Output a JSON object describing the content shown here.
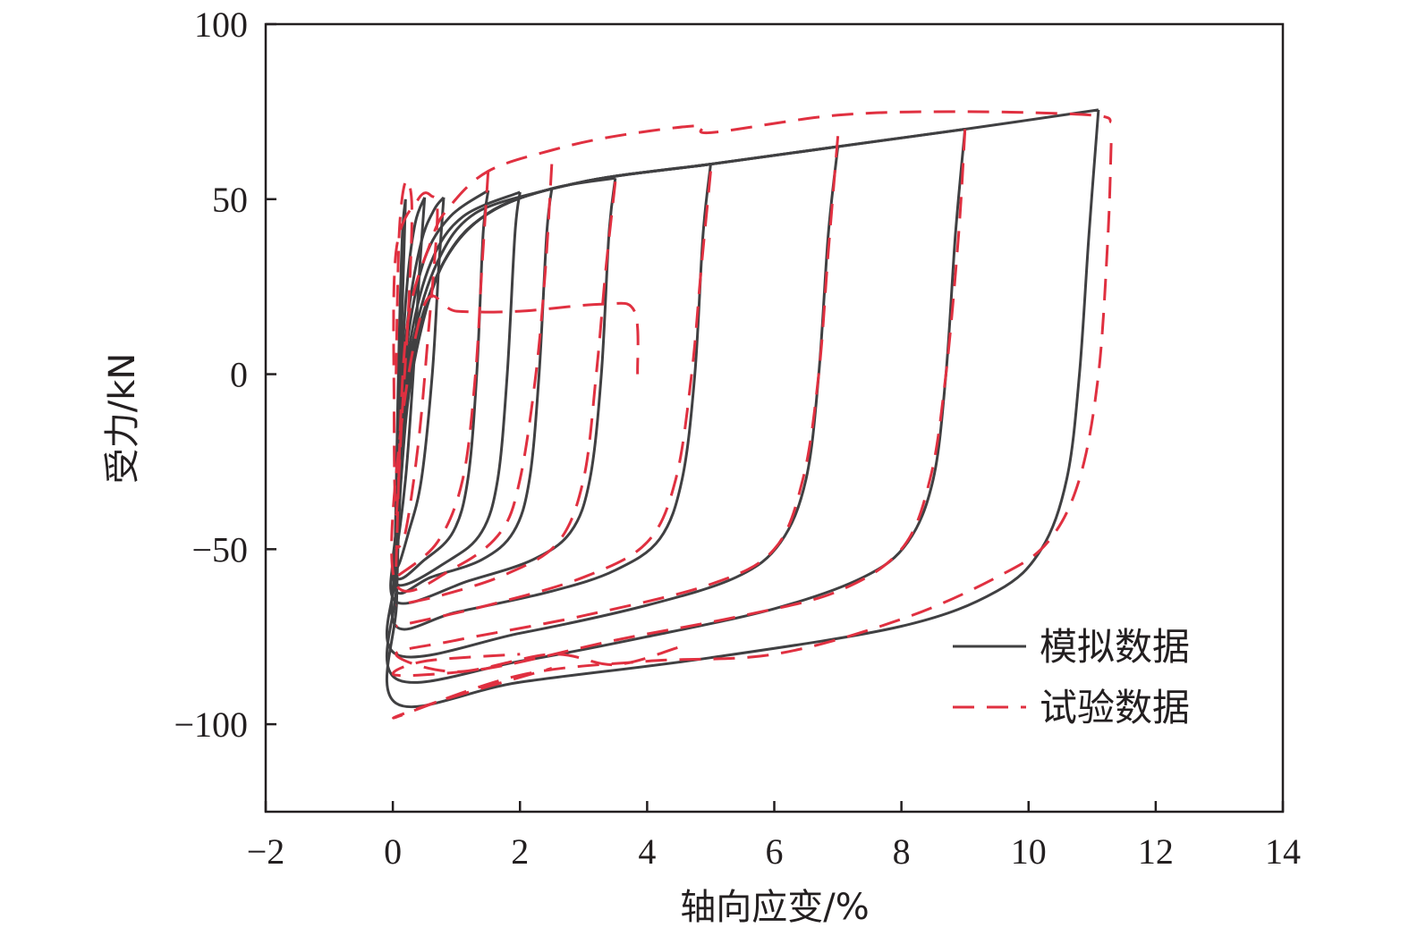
{
  "chart_data": {
    "type": "line",
    "title": "",
    "xlabel": "轴向应变/%",
    "ylabel": "受力/kN",
    "xlim": [
      -2,
      14
    ],
    "ylim": [
      -125,
      100
    ],
    "xticks": [
      -2,
      0,
      2,
      4,
      6,
      8,
      10,
      12,
      14
    ],
    "xtick_labels": [
      "−2",
      "0",
      "2",
      "4",
      "6",
      "8",
      "10",
      "12",
      "14"
    ],
    "yticks": [
      -100,
      -50,
      0,
      50,
      100
    ],
    "ytick_labels": [
      "−100",
      "−50",
      "0",
      "50",
      "100"
    ],
    "grid": false,
    "legend_position": "bottom-right",
    "colors": {
      "simulated": "#404042",
      "experimental": "#e03040"
    },
    "series": [
      {
        "name": "模拟数据",
        "style": "solid",
        "loops": [
          [
            [
              0.2,
              50
            ],
            [
              0.15,
              20
            ],
            [
              0.1,
              -10
            ],
            [
              0.05,
              -45
            ],
            [
              0.06,
              -25
            ],
            [
              0.1,
              10
            ],
            [
              0.15,
              40
            ],
            [
              0.2,
              50
            ]
          ],
          [
            [
              0.5,
              50.5
            ],
            [
              0.42,
              30
            ],
            [
              0.32,
              0
            ],
            [
              0.2,
              -30
            ],
            [
              0.05,
              -50
            ],
            [
              0.06,
              -30
            ],
            [
              0.12,
              -5
            ],
            [
              0.22,
              25
            ],
            [
              0.35,
              43
            ],
            [
              0.5,
              50.5
            ]
          ],
          [
            [
              0.8,
              50.5
            ],
            [
              0.72,
              30
            ],
            [
              0.62,
              0
            ],
            [
              0.45,
              -30
            ],
            [
              0.25,
              -45
            ],
            [
              0.05,
              -55
            ],
            [
              0.06,
              -35
            ],
            [
              0.12,
              -10
            ],
            [
              0.25,
              18
            ],
            [
              0.45,
              38
            ],
            [
              0.65,
              47
            ],
            [
              0.8,
              50.5
            ]
          ],
          [
            [
              1.5,
              52.5
            ],
            [
              1.42,
              40
            ],
            [
              1.32,
              0
            ],
            [
              1.18,
              -30
            ],
            [
              0.95,
              -45
            ],
            [
              0.5,
              -53
            ],
            [
              0.05,
              -58
            ],
            [
              0.06,
              -40
            ],
            [
              0.12,
              -15
            ],
            [
              0.25,
              12
            ],
            [
              0.5,
              33
            ],
            [
              0.9,
              45
            ],
            [
              1.5,
              52.5
            ]
          ],
          [
            [
              2.0,
              52
            ],
            [
              1.92,
              40
            ],
            [
              1.8,
              0
            ],
            [
              1.65,
              -30
            ],
            [
              1.4,
              -45
            ],
            [
              0.9,
              -53
            ],
            [
              0.05,
              -60
            ],
            [
              0.06,
              -42
            ],
            [
              0.12,
              -18
            ],
            [
              0.28,
              10
            ],
            [
              0.6,
              32
            ],
            [
              1.1,
              45
            ],
            [
              2.0,
              52
            ]
          ],
          [
            [
              2.5,
              53
            ],
            [
              2.42,
              40
            ],
            [
              2.3,
              0
            ],
            [
              2.15,
              -30
            ],
            [
              1.9,
              -45
            ],
            [
              1.4,
              -53
            ],
            [
              0.6,
              -58
            ],
            [
              0.05,
              -62
            ],
            [
              0.06,
              -44
            ],
            [
              0.13,
              -20
            ],
            [
              0.3,
              8
            ],
            [
              0.7,
              32
            ],
            [
              1.3,
              46
            ],
            [
              2.5,
              53
            ]
          ],
          [
            [
              3.5,
              56
            ],
            [
              3.4,
              40
            ],
            [
              3.28,
              0
            ],
            [
              3.1,
              -30
            ],
            [
              2.8,
              -45
            ],
            [
              2.2,
              -53
            ],
            [
              1.2,
              -59
            ],
            [
              0.05,
              -65
            ],
            [
              0.06,
              -45
            ],
            [
              0.13,
              -20
            ],
            [
              0.32,
              7
            ],
            [
              0.8,
              32
            ],
            [
              1.5,
              46
            ],
            [
              2.5,
              53
            ],
            [
              3.5,
              56
            ]
          ],
          [
            [
              5.0,
              60
            ],
            [
              4.88,
              40
            ],
            [
              4.75,
              0
            ],
            [
              4.55,
              -30
            ],
            [
              4.2,
              -47
            ],
            [
              3.5,
              -56
            ],
            [
              2.5,
              -62
            ],
            [
              1.0,
              -68
            ],
            [
              0.05,
              -72
            ],
            [
              0.06,
              -50
            ],
            [
              0.13,
              -22
            ],
            [
              0.33,
              6
            ],
            [
              0.8,
              32
            ],
            [
              1.6,
              47
            ],
            [
              3.0,
              55
            ],
            [
              5.0,
              60
            ]
          ],
          [
            [
              7.0,
              65
            ],
            [
              6.85,
              40
            ],
            [
              6.7,
              0
            ],
            [
              6.5,
              -30
            ],
            [
              6.1,
              -48
            ],
            [
              5.4,
              -58
            ],
            [
              4.0,
              -66
            ],
            [
              2.0,
              -74
            ],
            [
              0.05,
              -80
            ],
            [
              0.06,
              -55
            ],
            [
              0.13,
              -25
            ],
            [
              0.33,
              5
            ],
            [
              0.8,
              32
            ],
            [
              1.6,
              47
            ],
            [
              3.0,
              55
            ],
            [
              5.0,
              60
            ],
            [
              7.0,
              65
            ]
          ],
          [
            [
              9.0,
              70
            ],
            [
              8.85,
              40
            ],
            [
              8.7,
              0
            ],
            [
              8.5,
              -30
            ],
            [
              8.1,
              -48
            ],
            [
              7.4,
              -58
            ],
            [
              6.0,
              -67
            ],
            [
              4.0,
              -75
            ],
            [
              2.0,
              -82
            ],
            [
              0.05,
              -87
            ],
            [
              0.06,
              -60
            ],
            [
              0.13,
              -28
            ],
            [
              0.33,
              4
            ],
            [
              0.8,
              32
            ],
            [
              1.6,
              47
            ],
            [
              3.0,
              55
            ],
            [
              5.0,
              60
            ],
            [
              7.0,
              65
            ],
            [
              9.0,
              70
            ]
          ],
          [
            [
              11.1,
              75.5
            ],
            [
              10.95,
              40
            ],
            [
              10.8,
              0
            ],
            [
              10.6,
              -30
            ],
            [
              10.2,
              -50
            ],
            [
              9.5,
              -62
            ],
            [
              8.0,
              -72
            ],
            [
              5.0,
              -81
            ],
            [
              2.0,
              -88
            ],
            [
              0.05,
              -94
            ],
            [
              0.06,
              -65
            ],
            [
              0.13,
              -30
            ],
            [
              0.33,
              3
            ],
            [
              0.8,
              32
            ],
            [
              1.6,
              47
            ],
            [
              3.0,
              55
            ],
            [
              5.0,
              60
            ],
            [
              7.0,
              65
            ],
            [
              9.0,
              70
            ],
            [
              11.1,
              75.5
            ]
          ]
        ]
      },
      {
        "name": "试验数据",
        "style": "dashed",
        "loops": [
          [
            [
              0.05,
              0
            ],
            [
              0.1,
              40
            ],
            [
              0.2,
              55
            ],
            [
              0.3,
              48
            ],
            [
              0.25,
              20
            ],
            [
              0.15,
              -10
            ],
            [
              0.05,
              -40
            ],
            [
              0.02,
              -10
            ],
            [
              0.05,
              35
            ],
            [
              0.4,
              50
            ],
            [
              0.6,
              51
            ],
            [
              0.7,
              45
            ],
            [
              0.55,
              10
            ],
            [
              0.4,
              -20
            ],
            [
              0.2,
              -45
            ],
            [
              0.05,
              -50
            ]
          ],
          [
            [
              0.05,
              -55
            ],
            [
              0.2,
              10
            ],
            [
              0.6,
              38
            ],
            [
              0.9,
              48
            ],
            [
              1.5,
              58
            ],
            [
              2.5,
              64
            ],
            [
              3.5,
              68
            ],
            [
              4.8,
              71
            ],
            [
              5.0,
              69
            ],
            [
              7.0,
              74
            ],
            [
              9.0,
              75
            ],
            [
              11.0,
              74
            ],
            [
              11.3,
              72
            ]
          ],
          [
            [
              1.5,
              58
            ],
            [
              1.4,
              30
            ],
            [
              1.3,
              0
            ],
            [
              1.1,
              -30
            ],
            [
              0.7,
              -48
            ],
            [
              0.05,
              -58
            ]
          ],
          [
            [
              2.5,
              60
            ],
            [
              2.4,
              30
            ],
            [
              2.25,
              0
            ],
            [
              2.0,
              -30
            ],
            [
              1.7,
              -45
            ],
            [
              1.0,
              -55
            ],
            [
              0.05,
              -60
            ],
            [
              0.1,
              -20
            ],
            [
              0.5,
              20
            ],
            [
              1.0,
              18
            ],
            [
              2.0,
              18
            ],
            [
              3.3,
              20
            ],
            [
              3.8,
              18
            ],
            [
              3.85,
              0
            ]
          ],
          [
            [
              3.5,
              55
            ],
            [
              3.35,
              30
            ],
            [
              3.2,
              0
            ],
            [
              3.0,
              -30
            ],
            [
              2.6,
              -48
            ],
            [
              1.8,
              -57
            ],
            [
              0.8,
              -63
            ],
            [
              0.05,
              -66
            ]
          ],
          [
            [
              5.0,
              58
            ],
            [
              4.85,
              30
            ],
            [
              4.7,
              0
            ],
            [
              4.45,
              -30
            ],
            [
              4.0,
              -48
            ],
            [
              3.0,
              -58
            ],
            [
              1.5,
              -66
            ],
            [
              0.05,
              -72
            ]
          ],
          [
            [
              7.0,
              68
            ],
            [
              6.85,
              35
            ],
            [
              6.7,
              0
            ],
            [
              6.45,
              -30
            ],
            [
              6.0,
              -50
            ],
            [
              5.0,
              -60
            ],
            [
              3.0,
              -69
            ],
            [
              1.0,
              -76
            ],
            [
              0.05,
              -80
            ],
            [
              1.0,
              -85
            ],
            [
              2.5,
              -80
            ],
            [
              3.5,
              -83
            ],
            [
              4.5,
              -78
            ]
          ],
          [
            [
              9.0,
              70
            ],
            [
              8.9,
              40
            ],
            [
              8.7,
              0
            ],
            [
              8.45,
              -30
            ],
            [
              8.0,
              -50
            ],
            [
              7.0,
              -62
            ],
            [
              5.5,
              -69
            ],
            [
              3.5,
              -76
            ],
            [
              1.5,
              -84
            ],
            [
              0.05,
              -86
            ],
            [
              0.5,
              -82
            ],
            [
              2.0,
              -80
            ]
          ],
          [
            [
              11.3,
              66
            ],
            [
              11.25,
              40
            ],
            [
              11.1,
              0
            ],
            [
              10.8,
              -30
            ],
            [
              10.3,
              -48
            ],
            [
              9.5,
              -58
            ],
            [
              8.0,
              -70
            ],
            [
              6.0,
              -80
            ],
            [
              4.0,
              -82
            ],
            [
              2.0,
              -86
            ],
            [
              0.05,
              -98
            ],
            [
              0.8,
              -93
            ],
            [
              2.5,
              -84
            ]
          ]
        ]
      }
    ]
  }
}
